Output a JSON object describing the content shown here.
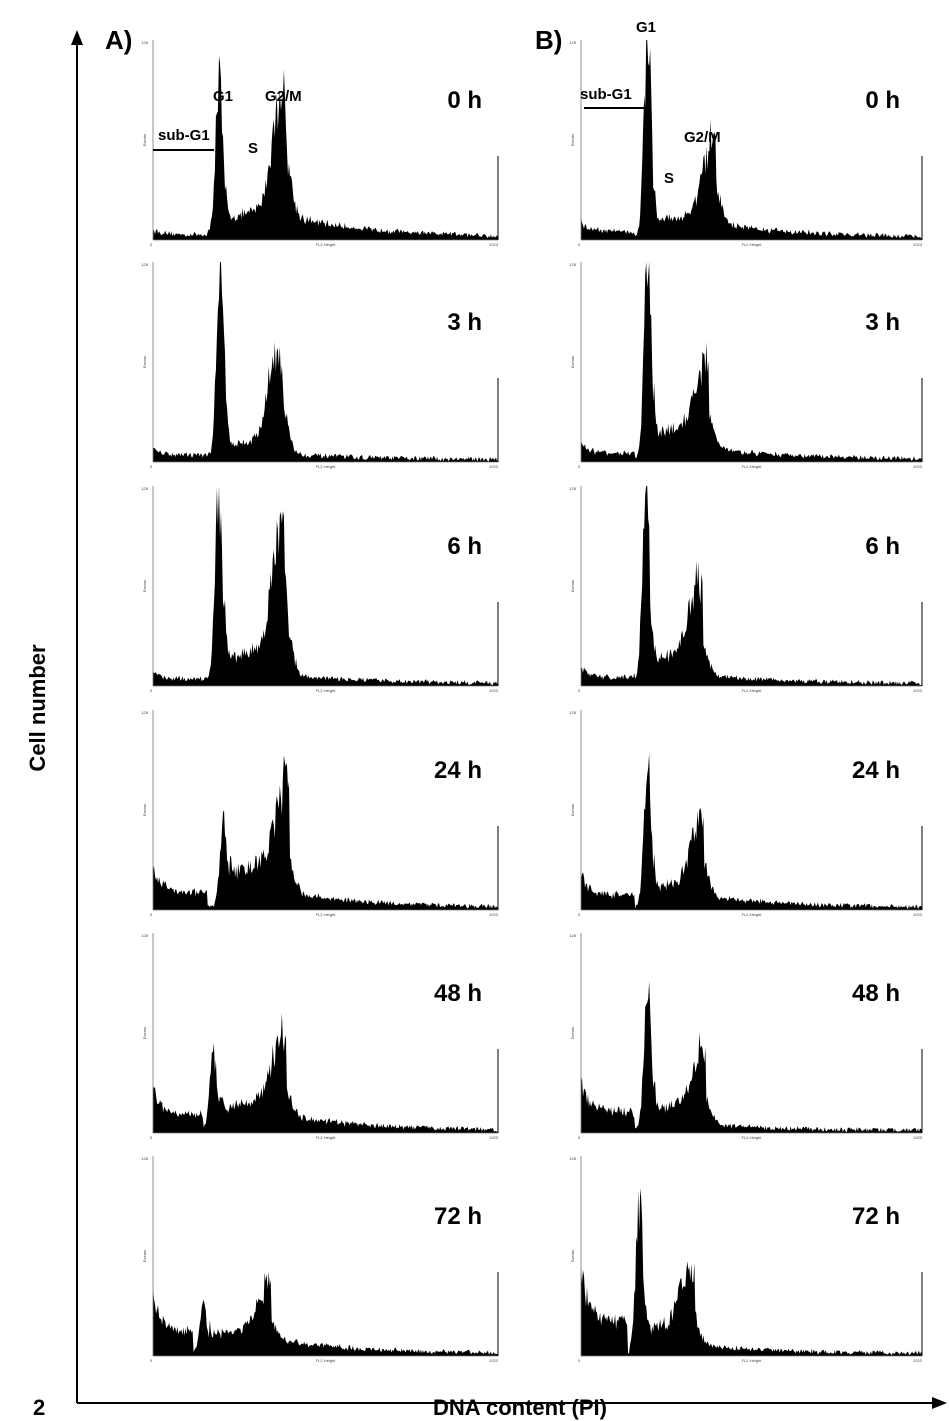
{
  "figure": {
    "panel_labels": [
      "A)",
      "B)"
    ],
    "y_axis_label": "Cell number",
    "x_axis_label": "DNA content (PI)",
    "figure_number": "2",
    "peak_labels": {
      "sub_g1": "sub-G1",
      "g1": "G1",
      "s": "S",
      "g2m": "G2/M"
    },
    "tiny_y_label": "Events",
    "tiny_x_label": "FL2-Height",
    "tiny_y_max": "128",
    "tiny_x_max": "1023",
    "tiny_zero": "0"
  },
  "chart_data": [
    {
      "type": "area",
      "panel": "A",
      "time": "0 h",
      "x_range": [
        0,
        1023
      ],
      "y_range": [
        0,
        128
      ],
      "peaks": {
        "subg1_level": 2,
        "subg1_end": 170,
        "g1_pos": 196,
        "g1_height": 100,
        "s_level": 22,
        "g2m_pos": 375,
        "g2m_height": 85,
        "tail_level": 15
      }
    },
    {
      "type": "area",
      "panel": "A",
      "time": "3 h",
      "x_range": [
        0,
        1023
      ],
      "y_range": [
        0,
        128
      ],
      "peaks": {
        "subg1_level": 3,
        "subg1_end": 170,
        "g1_pos": 200,
        "g1_height": 128,
        "s_level": 16,
        "g2m_pos": 365,
        "g2m_height": 72,
        "tail_level": 4
      }
    },
    {
      "type": "area",
      "panel": "A",
      "time": "6 h",
      "x_range": [
        0,
        1023
      ],
      "y_range": [
        0,
        128
      ],
      "peaks": {
        "subg1_level": 3,
        "subg1_end": 170,
        "g1_pos": 195,
        "g1_height": 124,
        "s_level": 28,
        "g2m_pos": 375,
        "g2m_height": 88,
        "tail_level": 6
      }
    },
    {
      "type": "area",
      "panel": "A",
      "time": "24 h",
      "x_range": [
        0,
        1023
      ],
      "y_range": [
        0,
        128
      ],
      "peaks": {
        "subg1_level": 10,
        "subg1_end": 160,
        "g1_pos": 210,
        "g1_height": 55,
        "s_level": 38,
        "g2m_pos": 385,
        "g2m_height": 48,
        "tail_level": 10
      }
    },
    {
      "type": "area",
      "panel": "A",
      "time": "48 h",
      "x_range": [
        0,
        1023
      ],
      "y_range": [
        0,
        128
      ],
      "peaks": {
        "subg1_level": 10,
        "subg1_end": 150,
        "g1_pos": 180,
        "g1_height": 48,
        "s_level": 26,
        "g2m_pos": 375,
        "g2m_height": 40,
        "tail_level": 10
      }
    },
    {
      "type": "area",
      "panel": "A",
      "time": "72 h",
      "x_range": [
        0,
        1023
      ],
      "y_range": [
        0,
        128
      ],
      "peaks": {
        "subg1_level": 14,
        "subg1_end": 120,
        "g1_pos": 150,
        "g1_height": 30,
        "s_level": 20,
        "g2m_pos": 330,
        "g2m_height": 24,
        "tail_level": 10
      }
    },
    {
      "type": "area",
      "panel": "B",
      "time": "0 h",
      "x_range": [
        0,
        1023
      ],
      "y_range": [
        0,
        128
      ],
      "peaks": {
        "subg1_level": 4,
        "subg1_end": 160,
        "g1_pos": 200,
        "g1_height": 128,
        "s_level": 18,
        "g2m_pos": 385,
        "g2m_height": 50,
        "tail_level": 10
      }
    },
    {
      "type": "area",
      "panel": "B",
      "time": "3 h",
      "x_range": [
        0,
        1023
      ],
      "y_range": [
        0,
        128
      ],
      "peaks": {
        "subg1_level": 4,
        "subg1_end": 160,
        "g1_pos": 200,
        "g1_height": 128,
        "s_level": 28,
        "g2m_pos": 365,
        "g2m_height": 42,
        "tail_level": 8
      }
    },
    {
      "type": "area",
      "panel": "B",
      "time": "6 h",
      "x_range": [
        0,
        1023
      ],
      "y_range": [
        0,
        128
      ],
      "peaks": {
        "subg1_level": 4,
        "subg1_end": 160,
        "g1_pos": 195,
        "g1_height": 124,
        "s_level": 26,
        "g2m_pos": 345,
        "g2m_height": 48,
        "tail_level": 6
      }
    },
    {
      "type": "area",
      "panel": "B",
      "time": "24 h",
      "x_range": [
        0,
        1023
      ],
      "y_range": [
        0,
        128
      ],
      "peaks": {
        "subg1_level": 8,
        "subg1_end": 160,
        "g1_pos": 200,
        "g1_height": 90,
        "s_level": 22,
        "g2m_pos": 350,
        "g2m_height": 42,
        "tail_level": 8
      }
    },
    {
      "type": "area",
      "panel": "B",
      "time": "48 h",
      "x_range": [
        0,
        1023
      ],
      "y_range": [
        0,
        128
      ],
      "peaks": {
        "subg1_level": 12,
        "subg1_end": 160,
        "g1_pos": 200,
        "g1_height": 98,
        "s_level": 24,
        "g2m_pos": 355,
        "g2m_height": 36,
        "tail_level": 4
      }
    },
    {
      "type": "area",
      "panel": "B",
      "time": "72 h",
      "x_range": [
        0,
        1023
      ],
      "y_range": [
        0,
        128
      ],
      "peaks": {
        "subg1_level": 20,
        "subg1_end": 140,
        "g1_pos": 175,
        "g1_height": 95,
        "s_level": 26,
        "g2m_pos": 320,
        "g2m_height": 38,
        "tail_level": 6
      }
    }
  ]
}
